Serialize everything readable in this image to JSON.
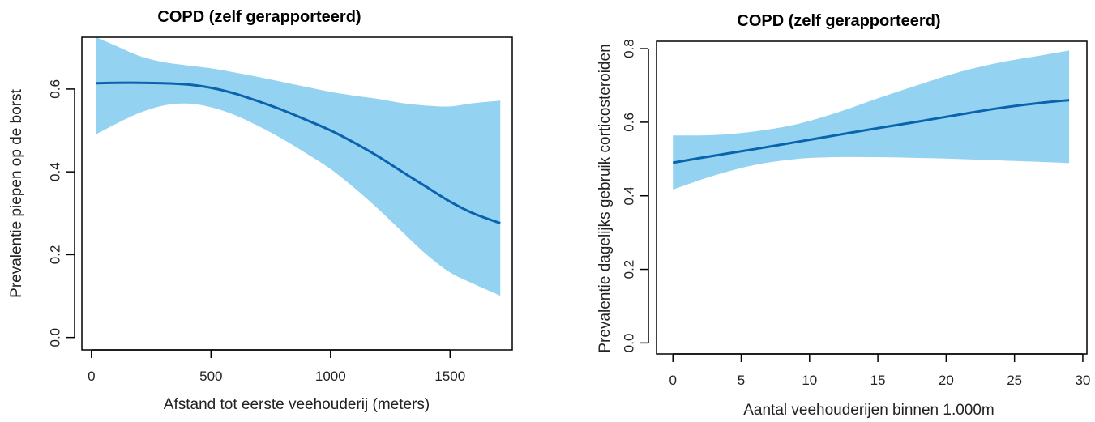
{
  "chart_data": [
    {
      "type": "line",
      "title": "COPD (zelf gerapporteerd)",
      "xlabel": "Afstand tot eerste veehouderij (meters)",
      "ylabel": "Prevalentie piepen op de borst",
      "xlim": [
        -40,
        1760
      ],
      "ylim": [
        -0.03,
        0.725
      ],
      "xticks": [
        0,
        500,
        1000,
        1500
      ],
      "xtick_labels": [
        "0",
        "500",
        "1000",
        "1500"
      ],
      "yticks": [
        0.0,
        0.2,
        0.4,
        0.6
      ],
      "ytick_labels": [
        "0.0",
        "0.2",
        "0.4",
        "0.6"
      ],
      "grid": false,
      "series": [
        {
          "x": [
            20,
            100,
            200,
            300,
            400,
            500,
            600,
            700,
            800,
            900,
            1000,
            1100,
            1200,
            1300,
            1400,
            1500,
            1600,
            1710
          ],
          "values": [
            0.614,
            0.615,
            0.615,
            0.614,
            0.611,
            0.603,
            0.589,
            0.57,
            0.549,
            0.525,
            0.5,
            0.47,
            0.437,
            0.4,
            0.364,
            0.328,
            0.299,
            0.276
          ],
          "lower": [
            0.491,
            0.515,
            0.542,
            0.56,
            0.565,
            0.556,
            0.537,
            0.51,
            0.479,
            0.444,
            0.407,
            0.361,
            0.31,
            0.255,
            0.201,
            0.157,
            0.129,
            0.101
          ],
          "upper": [
            0.725,
            0.705,
            0.68,
            0.665,
            0.657,
            0.65,
            0.64,
            0.629,
            0.617,
            0.605,
            0.593,
            0.584,
            0.576,
            0.566,
            0.56,
            0.558,
            0.566,
            0.572
          ]
        }
      ],
      "colors": {
        "line": "#0a64ad",
        "band": "#94d2f2"
      }
    },
    {
      "type": "line",
      "title": "COPD (zelf gerapporteerd)",
      "xlabel": "Aantal veehouderijen binnen 1.000m",
      "ylabel": "Prevalentie dagelijks gebruik corticosteroiden",
      "xlim": [
        -1.2,
        30.3
      ],
      "ylim": [
        -0.03,
        0.82
      ],
      "xticks": [
        0,
        5,
        10,
        15,
        20,
        25,
        30
      ],
      "xtick_labels": [
        "0",
        "5",
        "10",
        "15",
        "20",
        "25",
        "30"
      ],
      "yticks": [
        0.0,
        0.2,
        0.4,
        0.6,
        0.8
      ],
      "ytick_labels": [
        "0.0",
        "0.2",
        "0.4",
        "0.6",
        "0.8"
      ],
      "grid": false,
      "series": [
        {
          "x": [
            0,
            3,
            6,
            9,
            12,
            15,
            18,
            21,
            24,
            27,
            29
          ],
          "values": [
            0.49,
            0.509,
            0.527,
            0.546,
            0.565,
            0.584,
            0.602,
            0.621,
            0.639,
            0.653,
            0.66
          ],
          "lower": [
            0.417,
            0.455,
            0.484,
            0.5,
            0.505,
            0.505,
            0.503,
            0.5,
            0.496,
            0.492,
            0.489
          ],
          "upper": [
            0.564,
            0.565,
            0.575,
            0.594,
            0.626,
            0.665,
            0.702,
            0.737,
            0.763,
            0.782,
            0.795
          ]
        }
      ],
      "colors": {
        "line": "#0a64ad",
        "band": "#94d2f2"
      }
    }
  ]
}
